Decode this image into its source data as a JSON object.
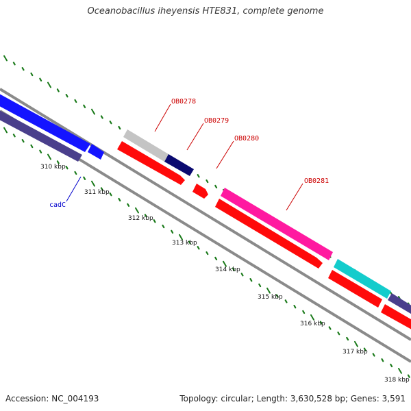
{
  "title": "Oceanobacillus iheyensis HTE831, complete genome",
  "footer": {
    "accession": "Accession: NC_004193",
    "topology": "Topology: circular; Length: 3,630,528 bp; Genes: 3,591"
  },
  "colors": {
    "backbone": "#8a8a8a",
    "tick": "#1a7a1a",
    "blue_gene": "#1414ff",
    "slate_gene": "#4a3f8c",
    "gray_gene": "#c4c4c4",
    "navy_gene": "#0a0a70",
    "red_gene": "#ff0a0a",
    "pink_gene": "#ff1aa0",
    "cyan_gene": "#14cccc",
    "label_red": "#cc0000",
    "label_blue": "#0000cc"
  },
  "kbp_labels": [
    "310 kbp",
    "311 kbp",
    "312 kbp",
    "313 kbp",
    "314 kbp",
    "315 kbp",
    "316 kbp",
    "317 kbp",
    "318 kbp"
  ],
  "gene_labels": {
    "ob0278": "OB0278",
    "ob0279": "OB0279",
    "ob0280": "OB0280",
    "ob0281": "OB0281",
    "cadc": "cadC"
  }
}
